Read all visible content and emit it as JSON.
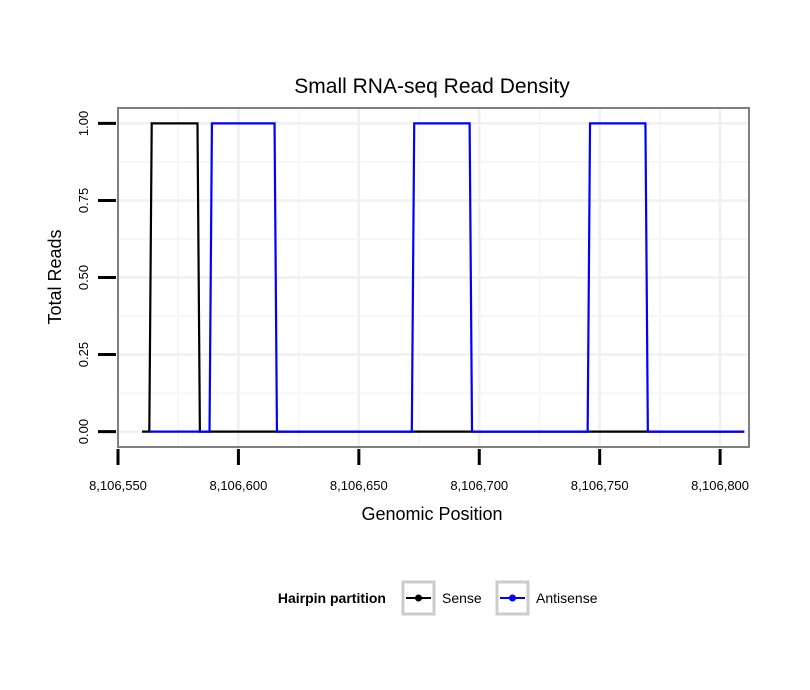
{
  "chart_data": {
    "type": "line",
    "title": "Small RNA-seq Read Density",
    "xlabel": "Genomic Position",
    "ylabel": "Total Reads",
    "xlim": [
      8106550,
      8106812
    ],
    "ylim": [
      -0.05,
      1.05
    ],
    "x_ticks": [
      8106550,
      8106600,
      8106650,
      8106700,
      8106750,
      8106800
    ],
    "x_tick_labels": [
      "8,106,550",
      "8,106,600",
      "8,106,650",
      "8,106,700",
      "8,106,750",
      "8,106,800"
    ],
    "y_ticks": [
      0,
      0.25,
      0.5,
      0.75,
      1.0
    ],
    "y_tick_labels": [
      "0.00",
      "0.25",
      "0.50",
      "0.75",
      "1.00"
    ],
    "grid": true,
    "legend": {
      "title": "Hairpin partition",
      "placement": "bottom"
    },
    "series": [
      {
        "name": "Sense",
        "color": "#000000",
        "x": [
          8106560,
          8106563,
          8106564,
          8106583,
          8106584,
          8106810
        ],
        "y": [
          0,
          0,
          1,
          1,
          0,
          0
        ]
      },
      {
        "name": "Antisense",
        "color": "#0000ff",
        "x": [
          8106563,
          8106588,
          8106589,
          8106615,
          8106616,
          8106672,
          8106673,
          8106696,
          8106697,
          8106745,
          8106746,
          8106769,
          8106770,
          8106810
        ],
        "y": [
          0,
          0,
          1,
          1,
          0,
          0,
          1,
          1,
          0,
          0,
          1,
          1,
          0,
          0
        ]
      }
    ]
  }
}
